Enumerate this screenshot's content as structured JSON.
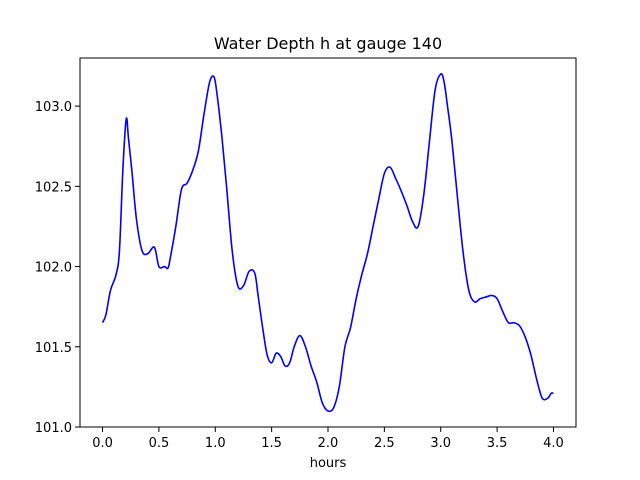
{
  "chart_data": {
    "type": "line",
    "title": "Water Depth h at gauge 140",
    "xlabel": "hours",
    "ylabel": "",
    "xlim": [
      -0.2,
      4.2
    ],
    "ylim": [
      101.0,
      103.3
    ],
    "xticks": [
      0.0,
      0.5,
      1.0,
      1.5,
      2.0,
      2.5,
      3.0,
      3.5,
      4.0
    ],
    "xtick_labels": [
      "0.0",
      "0.5",
      "1.0",
      "1.5",
      "2.0",
      "2.5",
      "3.0",
      "3.5",
      "4.0"
    ],
    "yticks": [
      101.0,
      101.5,
      102.0,
      102.5,
      103.0
    ],
    "ytick_labels": [
      "101.0",
      "101.5",
      "102.0",
      "102.5",
      "103.0"
    ],
    "grid": false,
    "series": [
      {
        "color": "#0000ff",
        "x": [
          0.0,
          0.03,
          0.07,
          0.12,
          0.15,
          0.18,
          0.21,
          0.23,
          0.26,
          0.3,
          0.35,
          0.4,
          0.46,
          0.5,
          0.55,
          0.58,
          0.6,
          0.65,
          0.7,
          0.75,
          0.8,
          0.85,
          0.9,
          0.95,
          0.99,
          1.02,
          1.06,
          1.1,
          1.15,
          1.2,
          1.25,
          1.3,
          1.35,
          1.38,
          1.42,
          1.46,
          1.5,
          1.54,
          1.58,
          1.62,
          1.66,
          1.7,
          1.75,
          1.8,
          1.85,
          1.9,
          1.95,
          2.0,
          2.05,
          2.1,
          2.15,
          2.2,
          2.25,
          2.3,
          2.35,
          2.4,
          2.45,
          2.5,
          2.55,
          2.6,
          2.65,
          2.7,
          2.75,
          2.8,
          2.85,
          2.9,
          2.95,
          3.0,
          3.03,
          3.06,
          3.1,
          3.15,
          3.2,
          3.25,
          3.3,
          3.35,
          3.4,
          3.45,
          3.5,
          3.55,
          3.6,
          3.65,
          3.7,
          3.75,
          3.8,
          3.85,
          3.9,
          3.95,
          3.98,
          4.0
        ],
        "y": [
          101.65,
          101.7,
          101.85,
          101.95,
          102.1,
          102.6,
          102.92,
          102.8,
          102.6,
          102.3,
          102.1,
          102.08,
          102.12,
          102.0,
          102.0,
          101.99,
          102.05,
          102.25,
          102.48,
          102.52,
          102.6,
          102.72,
          102.95,
          103.15,
          103.18,
          103.05,
          102.8,
          102.5,
          102.1,
          101.88,
          101.88,
          101.97,
          101.96,
          101.82,
          101.62,
          101.45,
          101.4,
          101.46,
          101.44,
          101.38,
          101.4,
          101.5,
          101.57,
          101.5,
          101.38,
          101.28,
          101.15,
          101.1,
          101.12,
          101.25,
          101.5,
          101.62,
          101.8,
          101.95,
          102.08,
          102.25,
          102.42,
          102.58,
          102.62,
          102.55,
          102.47,
          102.38,
          102.28,
          102.25,
          102.45,
          102.78,
          103.1,
          103.2,
          103.15,
          103.0,
          102.78,
          102.42,
          102.08,
          101.85,
          101.78,
          101.8,
          101.81,
          101.82,
          101.8,
          101.72,
          101.65,
          101.65,
          101.63,
          101.56,
          101.45,
          101.3,
          101.18,
          101.18,
          101.21,
          101.21
        ]
      }
    ]
  }
}
